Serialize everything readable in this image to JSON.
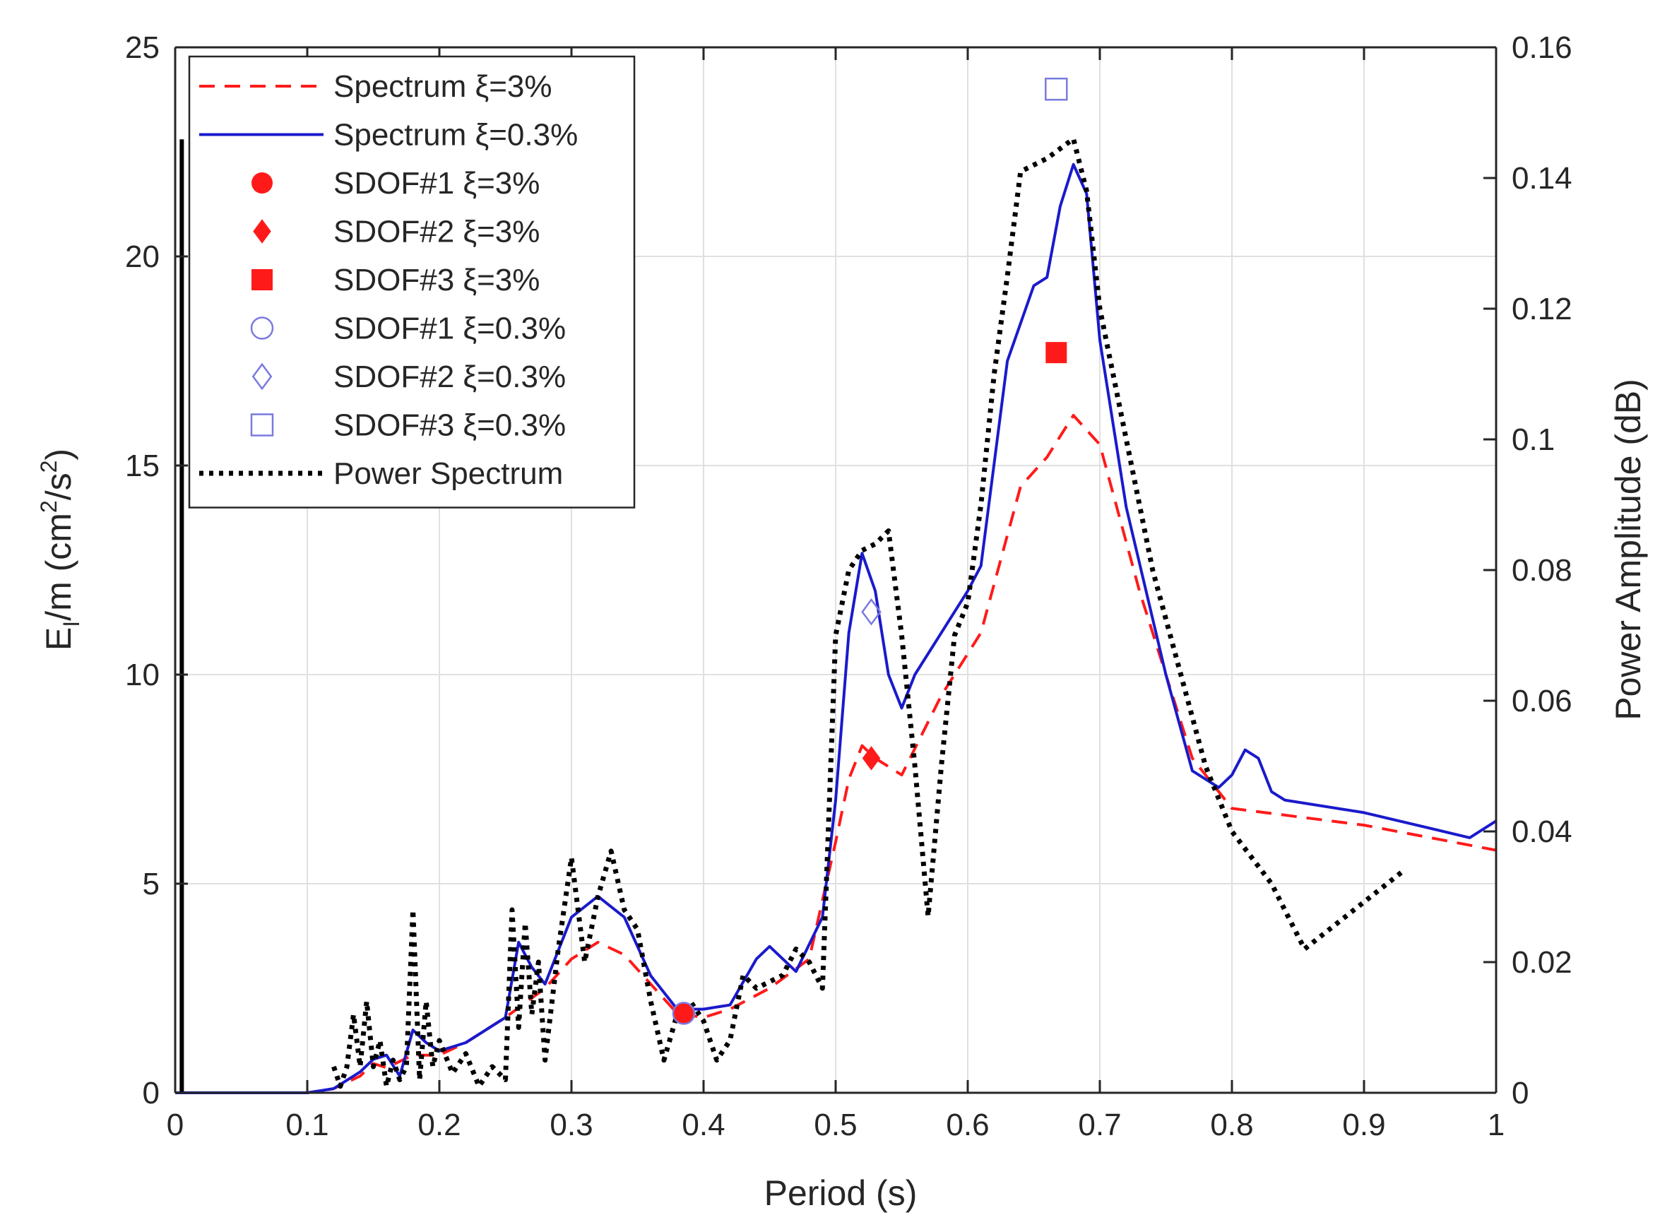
{
  "chart_data": {
    "type": "line",
    "title": "",
    "xlabel": "Period (s)",
    "ylabel_left": {
      "base": "E",
      "sub": "I",
      "mid": "/m (cm",
      "sup1": "2",
      "mid2": "/s",
      "sup2": "2",
      "tail": ")"
    },
    "ylabel_right": "Power Amplitude (dB)",
    "xlim": [
      0,
      1
    ],
    "ylim_left": [
      0,
      25
    ],
    "ylim_right": [
      0,
      0.16
    ],
    "grid": true,
    "legend_position": "top-left",
    "x_ticks": [
      0,
      0.1,
      0.2,
      0.3,
      0.4,
      0.5,
      0.6,
      0.7,
      0.8,
      0.9,
      1
    ],
    "x_tick_labels": [
      "0",
      "0.1",
      "0.2",
      "0.3",
      "0.4",
      "0.5",
      "0.6",
      "0.7",
      "0.8",
      "0.9",
      "1"
    ],
    "y_ticks_left": [
      0,
      5,
      10,
      15,
      20,
      25
    ],
    "y_tick_labels_left": [
      "0",
      "5",
      "10",
      "15",
      "20",
      "25"
    ],
    "y_ticks_right": [
      0,
      0.02,
      0.04,
      0.06,
      0.08,
      0.1,
      0.12,
      0.14,
      0.16
    ],
    "y_tick_labels_right": [
      "0",
      "0.02",
      "0.04",
      "0.06",
      "0.08",
      "0.1",
      "0.12",
      "0.14",
      "0.16"
    ],
    "colors": {
      "red": "#ff1a1a",
      "blue": "#1a1acc",
      "black": "#000000",
      "grid": "#e0e0e0"
    },
    "series": [
      {
        "name": "Spectrum ξ=3%",
        "style": "dashed",
        "color": "#ff1a1a",
        "axis": "left",
        "x": [
          0,
          0.1,
          0.12,
          0.14,
          0.15,
          0.16,
          0.18,
          0.2,
          0.22,
          0.25,
          0.28,
          0.3,
          0.32,
          0.34,
          0.36,
          0.38,
          0.4,
          0.42,
          0.45,
          0.48,
          0.5,
          0.51,
          0.52,
          0.53,
          0.55,
          0.58,
          0.6,
          0.61,
          0.64,
          0.66,
          0.68,
          0.7,
          0.73,
          0.77,
          0.8,
          0.85,
          0.9,
          1
        ],
        "y": [
          0,
          0,
          0.1,
          0.4,
          0.7,
          0.6,
          0.9,
          0.9,
          1.2,
          1.8,
          2.5,
          3.2,
          3.6,
          3.3,
          2.6,
          1.9,
          1.8,
          2.0,
          2.5,
          3.2,
          6.0,
          7.5,
          8.3,
          8.0,
          7.6,
          9.5,
          10.5,
          11.0,
          14.5,
          15.2,
          16.2,
          15.5,
          12.0,
          8.0,
          6.8,
          6.6,
          6.4,
          5.8
        ]
      },
      {
        "name": "Spectrum ξ=0.3%",
        "style": "solid",
        "color": "#1a1acc",
        "axis": "left",
        "x": [
          0,
          0.1,
          0.12,
          0.14,
          0.15,
          0.16,
          0.17,
          0.18,
          0.19,
          0.2,
          0.22,
          0.25,
          0.26,
          0.27,
          0.28,
          0.3,
          0.32,
          0.34,
          0.36,
          0.38,
          0.4,
          0.42,
          0.44,
          0.45,
          0.47,
          0.49,
          0.5,
          0.51,
          0.52,
          0.53,
          0.54,
          0.55,
          0.56,
          0.58,
          0.6,
          0.61,
          0.63,
          0.65,
          0.66,
          0.67,
          0.68,
          0.69,
          0.7,
          0.72,
          0.75,
          0.77,
          0.79,
          0.8,
          0.81,
          0.82,
          0.83,
          0.84,
          0.9,
          0.98,
          1
        ],
        "y": [
          0,
          0,
          0.1,
          0.5,
          0.8,
          0.9,
          0.4,
          1.5,
          1.2,
          1.0,
          1.2,
          1.8,
          3.6,
          3.0,
          2.6,
          4.2,
          4.7,
          4.2,
          2.8,
          2.0,
          2.0,
          2.1,
          3.2,
          3.5,
          2.9,
          4.2,
          7.0,
          11.0,
          12.9,
          12.0,
          10.0,
          9.2,
          10.0,
          11.0,
          12.0,
          12.6,
          17.5,
          19.3,
          19.5,
          21.2,
          22.2,
          21.5,
          18.0,
          14.0,
          10.0,
          7.7,
          7.3,
          7.6,
          8.2,
          8.0,
          7.2,
          7.0,
          6.7,
          6.1,
          6.5
        ]
      },
      {
        "name": "Power Spectrum",
        "style": "dotted",
        "color": "#000000",
        "axis": "right",
        "x": [
          0.12,
          0.125,
          0.13,
          0.135,
          0.14,
          0.145,
          0.15,
          0.155,
          0.16,
          0.165,
          0.17,
          0.175,
          0.18,
          0.185,
          0.19,
          0.195,
          0.2,
          0.21,
          0.22,
          0.23,
          0.24,
          0.25,
          0.255,
          0.26,
          0.265,
          0.27,
          0.275,
          0.28,
          0.29,
          0.3,
          0.31,
          0.32,
          0.33,
          0.34,
          0.35,
          0.36,
          0.37,
          0.38,
          0.39,
          0.4,
          0.41,
          0.42,
          0.43,
          0.44,
          0.45,
          0.46,
          0.47,
          0.48,
          0.49,
          0.5,
          0.51,
          0.52,
          0.53,
          0.54,
          0.55,
          0.56,
          0.57,
          0.58,
          0.59,
          0.6,
          0.61,
          0.62,
          0.63,
          0.64,
          0.66,
          0.68,
          0.69,
          0.7,
          0.72,
          0.74,
          0.76,
          0.78,
          0.8,
          0.83,
          0.855,
          0.93
        ],
        "y": [
          0.004,
          0.001,
          0.004,
          0.012,
          0.004,
          0.014,
          0.004,
          0.008,
          0.001,
          0.005,
          0.002,
          0.004,
          0.028,
          0.002,
          0.014,
          0.004,
          0.008,
          0.003,
          0.006,
          0.001,
          0.004,
          0.002,
          0.028,
          0.01,
          0.026,
          0.012,
          0.02,
          0.005,
          0.022,
          0.036,
          0.02,
          0.03,
          0.037,
          0.028,
          0.025,
          0.014,
          0.005,
          0.012,
          0.014,
          0.011,
          0.005,
          0.008,
          0.018,
          0.016,
          0.017,
          0.018,
          0.022,
          0.02,
          0.016,
          0.07,
          0.08,
          0.083,
          0.084,
          0.086,
          0.07,
          0.05,
          0.027,
          0.05,
          0.07,
          0.075,
          0.09,
          0.11,
          0.125,
          0.141,
          0.143,
          0.146,
          0.138,
          0.12,
          0.1,
          0.08,
          0.065,
          0.05,
          0.04,
          0.032,
          0.022,
          0.034
        ]
      }
    ],
    "markers": [
      {
        "name": "SDOF#1 ξ=3%",
        "shape": "circle",
        "filled": true,
        "color": "#ff1a1a",
        "x": 0.385,
        "y": 1.9
      },
      {
        "name": "SDOF#2 ξ=3%",
        "shape": "diamond",
        "filled": true,
        "color": "#ff1a1a",
        "x": 0.527,
        "y": 8.0
      },
      {
        "name": "SDOF#3 ξ=3%",
        "shape": "square",
        "filled": true,
        "color": "#ff1a1a",
        "x": 0.667,
        "y": 17.7
      },
      {
        "name": "SDOF#1 ξ=0.3%",
        "shape": "circle",
        "filled": false,
        "color": "#1a1acc",
        "x": 0.385,
        "y": 1.9
      },
      {
        "name": "SDOF#2 ξ=0.3%",
        "shape": "diamond",
        "filled": false,
        "color": "#1a1acc",
        "x": 0.527,
        "y": 11.5
      },
      {
        "name": "SDOF#3 ξ=0.3%",
        "shape": "square",
        "filled": false,
        "color": "#1a1acc",
        "x": 0.667,
        "y": 24.0
      }
    ],
    "legend": [
      {
        "label": "Spectrum ξ=3%",
        "kind": "line",
        "style": "dashed",
        "color": "#ff1a1a"
      },
      {
        "label": "Spectrum ξ=0.3%",
        "kind": "line",
        "style": "solid",
        "color": "#1a1acc"
      },
      {
        "label": "SDOF#1 ξ=3%",
        "kind": "marker",
        "shape": "circle",
        "filled": true,
        "color": "#ff1a1a"
      },
      {
        "label": "SDOF#2 ξ=3%",
        "kind": "marker",
        "shape": "diamond",
        "filled": true,
        "color": "#ff1a1a"
      },
      {
        "label": "SDOF#3 ξ=3%",
        "kind": "marker",
        "shape": "square",
        "filled": true,
        "color": "#ff1a1a"
      },
      {
        "label": "SDOF#1 ξ=0.3%",
        "kind": "marker",
        "shape": "circle",
        "filled": false,
        "color": "#1a1acc"
      },
      {
        "label": "SDOF#2 ξ=0.3%",
        "kind": "marker",
        "shape": "diamond",
        "filled": false,
        "color": "#1a1acc"
      },
      {
        "label": "SDOF#3 ξ=0.3%",
        "kind": "marker",
        "shape": "square",
        "filled": false,
        "color": "#1a1acc"
      },
      {
        "label": "Power Spectrum",
        "kind": "line",
        "style": "dotted",
        "color": "#000000"
      }
    ]
  }
}
